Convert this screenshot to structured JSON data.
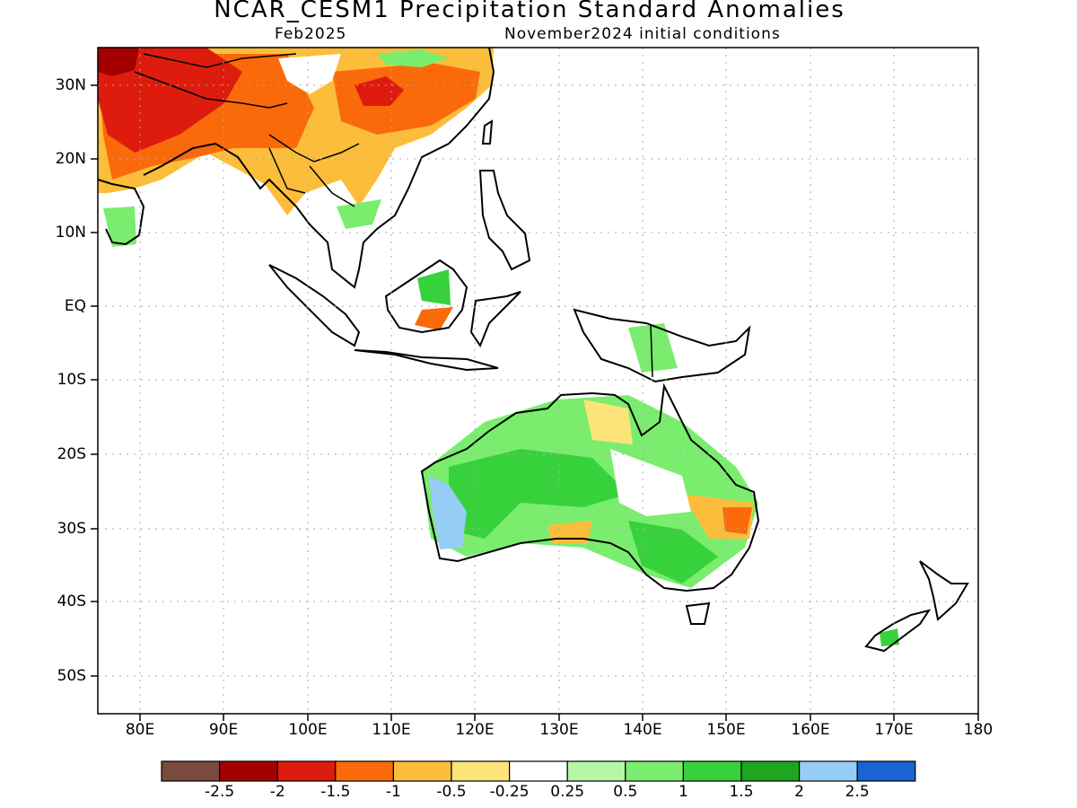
{
  "header": {
    "title": "NCAR_CESM1 Precipitation Standard Anomalies",
    "valid_month": "Feb2025",
    "initial_conditions": "November2024 initial conditions"
  },
  "axes": {
    "lat_labels": [
      "30N",
      "20N",
      "10N",
      "EQ",
      "10S",
      "20S",
      "30S",
      "40S",
      "50S"
    ],
    "lat_values": [
      30,
      20,
      10,
      0,
      -10,
      -20,
      -30,
      -40,
      -50
    ],
    "lon_labels": [
      "80E",
      "90E",
      "100E",
      "110E",
      "120E",
      "130E",
      "140E",
      "150E",
      "160E",
      "170E",
      "180"
    ],
    "lon_values": [
      80,
      90,
      100,
      110,
      120,
      130,
      140,
      150,
      160,
      170,
      180
    ],
    "lat_range": [
      -55,
      35
    ],
    "lon_range": [
      75,
      180
    ],
    "grid": "dotted"
  },
  "colorbar": {
    "colors": [
      "#7a4a3f",
      "#a50000",
      "#dd1c0e",
      "#fa6a0b",
      "#fcbe3a",
      "#fde47a",
      "#ffffff",
      "#b5f7a6",
      "#7aed6e",
      "#37d13c",
      "#1fa51f",
      "#96cdf7",
      "#1a64d2"
    ],
    "labels": [
      "-2.5",
      "-2",
      "-1.5",
      "-1",
      "-0.5",
      "-0.25",
      "0.25",
      "0.5",
      "1",
      "1.5",
      "2",
      "2.5"
    ]
  },
  "map_regions": [
    {
      "name": "south-asia-dry",
      "color": "#fa6a0b"
    },
    {
      "name": "australia-wet",
      "color": "#37d13c"
    }
  ]
}
